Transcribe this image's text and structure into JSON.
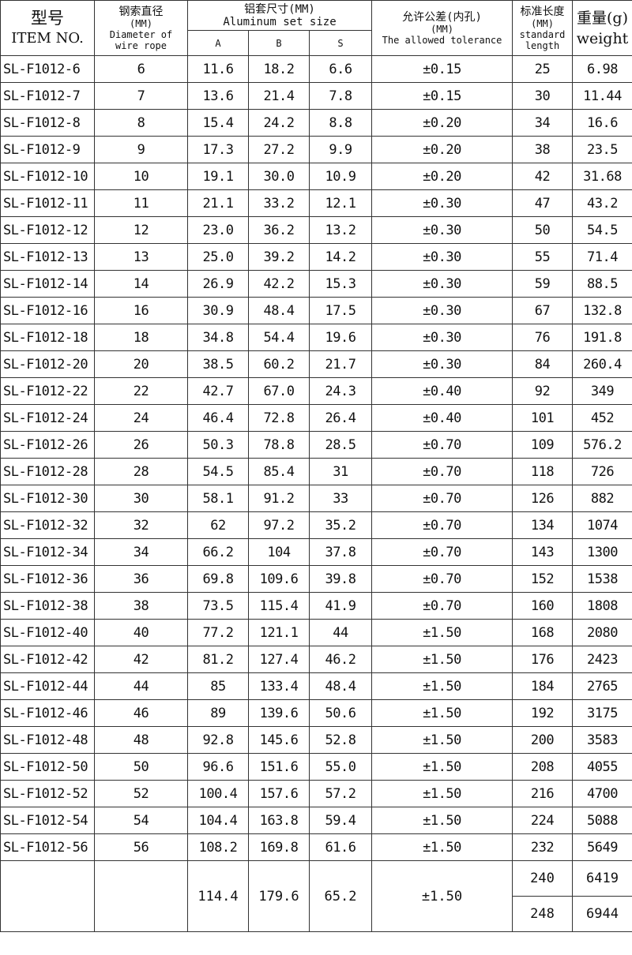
{
  "header": {
    "item_cn": "型号",
    "item_en": "ITEM NO.",
    "dia_cn": "钢索直径",
    "dia_unit": "(MM)",
    "dia_en": "Diameter of wire rope",
    "al_cn": "铝套尺寸(MM)",
    "al_en": "Aluminum set size",
    "col_a": "A",
    "col_b": "B",
    "col_s": "S",
    "tol_cn": "允许公差(内孔)",
    "tol_unit": "(MM)",
    "tol_en": "The allowed tolerance",
    "len_cn": "标准长度",
    "len_unit": "(MM)",
    "len_en": "standard length",
    "wt_cn": "重量(g)",
    "wt_en": "weight"
  },
  "rows": [
    [
      "SL-F1012-6",
      "6",
      "11.6",
      "18.2",
      "6.6",
      "±0.15",
      "25",
      "6.98"
    ],
    [
      "SL-F1012-7",
      "7",
      "13.6",
      "21.4",
      "7.8",
      "±0.15",
      "30",
      "11.44"
    ],
    [
      "SL-F1012-8",
      "8",
      "15.4",
      "24.2",
      "8.8",
      "±0.20",
      "34",
      "16.6"
    ],
    [
      "SL-F1012-9",
      "9",
      "17.3",
      "27.2",
      "9.9",
      "±0.20",
      "38",
      "23.5"
    ],
    [
      "SL-F1012-10",
      "10",
      "19.1",
      "30.0",
      "10.9",
      "±0.20",
      "42",
      "31.68"
    ],
    [
      "SL-F1012-11",
      "11",
      "21.1",
      "33.2",
      "12.1",
      "±0.30",
      "47",
      "43.2"
    ],
    [
      "SL-F1012-12",
      "12",
      "23.0",
      "36.2",
      "13.2",
      "±0.30",
      "50",
      "54.5"
    ],
    [
      "SL-F1012-13",
      "13",
      "25.0",
      "39.2",
      "14.2",
      "±0.30",
      "55",
      "71.4"
    ],
    [
      "SL-F1012-14",
      "14",
      "26.9",
      "42.2",
      "15.3",
      "±0.30",
      "59",
      "88.5"
    ],
    [
      "SL-F1012-16",
      "16",
      "30.9",
      "48.4",
      "17.5",
      "±0.30",
      "67",
      "132.8"
    ],
    [
      "SL-F1012-18",
      "18",
      "34.8",
      "54.4",
      "19.6",
      "±0.30",
      "76",
      "191.8"
    ],
    [
      "SL-F1012-20",
      "20",
      "38.5",
      "60.2",
      "21.7",
      "±0.30",
      "84",
      "260.4"
    ],
    [
      "SL-F1012-22",
      "22",
      "42.7",
      "67.0",
      "24.3",
      "±0.40",
      "92",
      "349"
    ],
    [
      "SL-F1012-24",
      "24",
      "46.4",
      "72.8",
      "26.4",
      "±0.40",
      "101",
      "452"
    ],
    [
      "SL-F1012-26",
      "26",
      "50.3",
      "78.8",
      "28.5",
      "±0.70",
      "109",
      "576.2"
    ],
    [
      "SL-F1012-28",
      "28",
      "54.5",
      "85.4",
      "31",
      "±0.70",
      "118",
      "726"
    ],
    [
      "SL-F1012-30",
      "30",
      "58.1",
      "91.2",
      "33",
      "±0.70",
      "126",
      "882"
    ],
    [
      "SL-F1012-32",
      "32",
      "62",
      "97.2",
      "35.2",
      "±0.70",
      "134",
      "1074"
    ],
    [
      "SL-F1012-34",
      "34",
      "66.2",
      "104",
      "37.8",
      "±0.70",
      "143",
      "1300"
    ],
    [
      "SL-F1012-36",
      "36",
      "69.8",
      "109.6",
      "39.8",
      "±0.70",
      "152",
      "1538"
    ],
    [
      "SL-F1012-38",
      "38",
      "73.5",
      "115.4",
      "41.9",
      "±0.70",
      "160",
      "1808"
    ],
    [
      "SL-F1012-40",
      "40",
      "77.2",
      "121.1",
      "44",
      "±1.50",
      "168",
      "2080"
    ],
    [
      "SL-F1012-42",
      "42",
      "81.2",
      "127.4",
      "46.2",
      "±1.50",
      "176",
      "2423"
    ],
    [
      "SL-F1012-44",
      "44",
      "85",
      "133.4",
      "48.4",
      "±1.50",
      "184",
      "2765"
    ],
    [
      "SL-F1012-46",
      "46",
      "89",
      "139.6",
      "50.6",
      "±1.50",
      "192",
      "3175"
    ],
    [
      "SL-F1012-48",
      "48",
      "92.8",
      "145.6",
      "52.8",
      "±1.50",
      "200",
      "3583"
    ],
    [
      "SL-F1012-50",
      "50",
      "96.6",
      "151.6",
      "55.0",
      "±1.50",
      "208",
      "4055"
    ],
    [
      "SL-F1012-52",
      "52",
      "100.4",
      "157.6",
      "57.2",
      "±1.50",
      "216",
      "4700"
    ],
    [
      "SL-F1012-54",
      "54",
      "104.4",
      "163.8",
      "59.4",
      "±1.50",
      "224",
      "5088"
    ],
    [
      "SL-F1012-56",
      "56",
      "108.2",
      "169.8",
      "61.6",
      "±1.50",
      "232",
      "5649"
    ]
  ],
  "last": {
    "a": "114.4",
    "b": "179.6",
    "s": "65.2",
    "tol": "±1.50",
    "sub": [
      [
        "240",
        "6419"
      ],
      [
        "248",
        "6944"
      ]
    ]
  }
}
